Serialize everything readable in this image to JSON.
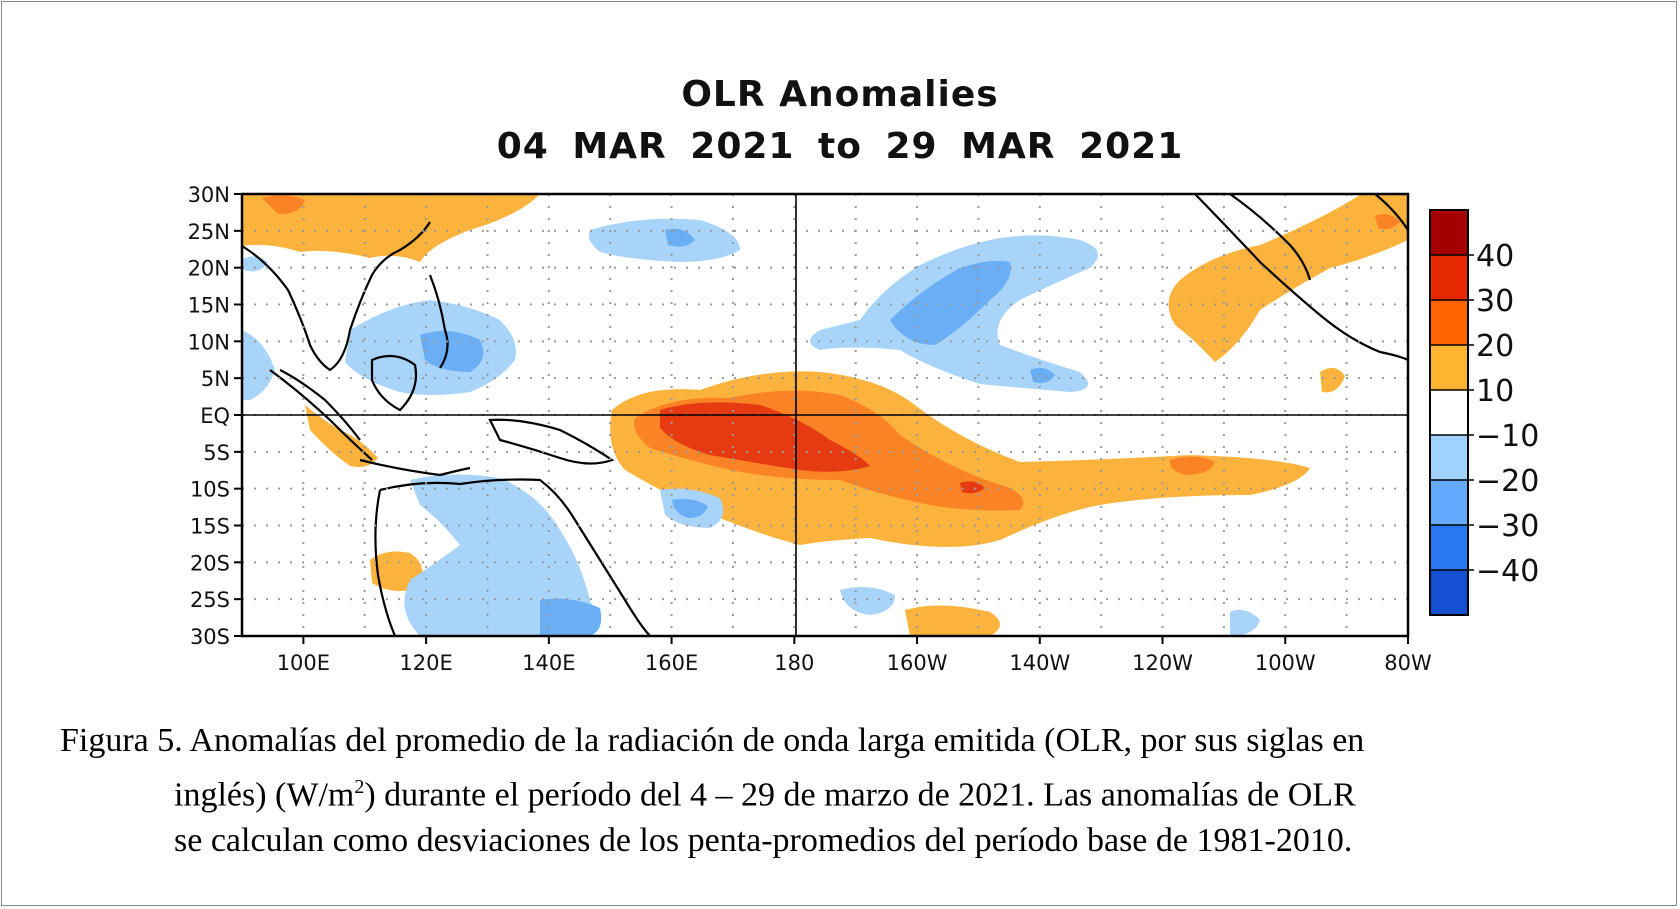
{
  "title": "OLR Anomalies",
  "subtitle": "04 MAR 2021 to 29 MAR 2021",
  "lat_labels": [
    "30N",
    "25N",
    "20N",
    "15N",
    "10N",
    "5N",
    "EQ",
    "5S",
    "10S",
    "15S",
    "20S",
    "25S",
    "30S"
  ],
  "lon_labels": [
    "100E",
    "120E",
    "140E",
    "160E",
    "180",
    "160W",
    "140W",
    "120W",
    "100W",
    "80W"
  ],
  "colorbar": {
    "labels": [
      "40",
      "30",
      "20",
      "10",
      "−10",
      "−20",
      "−30",
      "−40"
    ],
    "colors": [
      "#a50000",
      "#e62800",
      "#ff6400",
      "#ffb432",
      "#ffffff",
      "#a0d2ff",
      "#64aaff",
      "#2878f0",
      "#1450d2"
    ]
  },
  "palette": {
    "pos10": "#fbb33d",
    "pos20": "#f98325",
    "pos30": "#e63a10",
    "pos40": "#b81205",
    "neg10": "#a9d4f9",
    "neg20": "#6aaef5",
    "neg30": "#3a78e0"
  },
  "caption": {
    "line1": "Figura  5. Anomalías  del promedio  de la radiación  de onda larga emitida (OLR, por sus siglas  en",
    "line2_a": "inglés)  (W/m",
    "line2_sup": "2",
    "line2_b": ") durante  el período  del 4 – 29 de marzo  de 2021.   Las anomalías  de OLR",
    "line3": "se calculan  como desviaciones  de los  penta-promedios  del período  base de 1981-2010."
  }
}
